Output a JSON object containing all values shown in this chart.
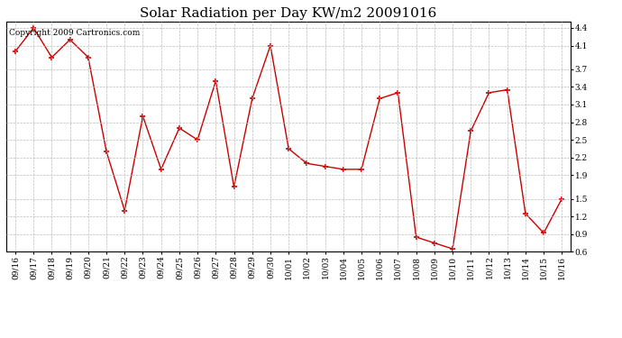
{
  "title": "Solar Radiation per Day KW/m2 20091016",
  "copyright": "Copyright 2009 Cartronics.com",
  "labels": [
    "09/16",
    "09/17",
    "09/18",
    "09/19",
    "09/20",
    "09/21",
    "09/22",
    "09/23",
    "09/24",
    "09/25",
    "09/26",
    "09/27",
    "09/28",
    "09/29",
    "09/30",
    "10/01",
    "10/02",
    "10/03",
    "10/04",
    "10/05",
    "10/06",
    "10/07",
    "10/08",
    "10/09",
    "10/10",
    "10/11",
    "10/12",
    "10/13",
    "10/14",
    "10/15",
    "10/16"
  ],
  "values": [
    4.0,
    4.4,
    3.9,
    4.2,
    3.9,
    2.3,
    1.3,
    2.9,
    2.0,
    2.7,
    2.5,
    3.5,
    1.7,
    3.2,
    4.1,
    2.35,
    2.1,
    2.05,
    2.0,
    2.0,
    3.2,
    3.3,
    0.85,
    0.75,
    0.65,
    2.65,
    3.3,
    3.35,
    1.25,
    0.92,
    1.5
  ],
  "line_color": "#cc0000",
  "marker_color": "#cc0000",
  "bg_color": "#ffffff",
  "plot_bg_color": "#ffffff",
  "grid_color": "#bbbbbb",
  "ylim": [
    0.6,
    4.5
  ],
  "yticks": [
    0.6,
    0.9,
    1.2,
    1.5,
    1.9,
    2.2,
    2.5,
    2.8,
    3.1,
    3.4,
    3.7,
    4.1,
    4.4
  ],
  "title_fontsize": 11,
  "tick_fontsize": 6.5,
  "copyright_fontsize": 6.5
}
